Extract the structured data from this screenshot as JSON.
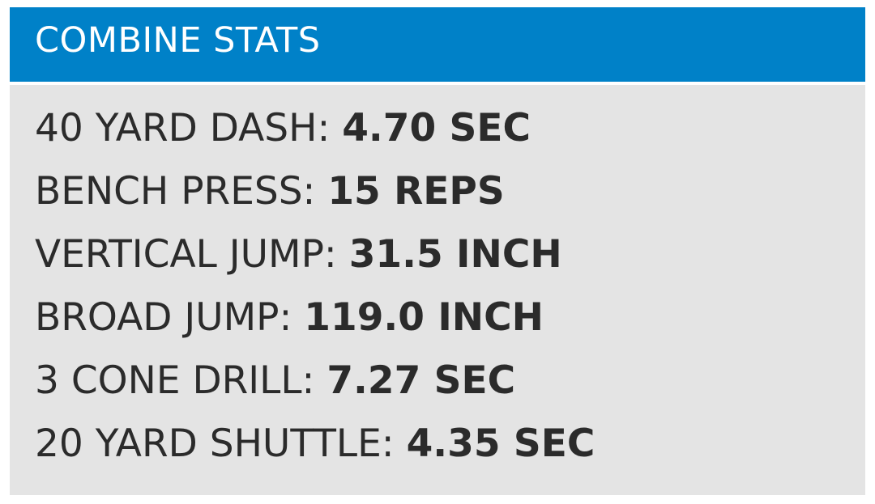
{
  "header": {
    "title": "COMBINE STATS",
    "background_color": "#0081c8"
  },
  "stats": [
    {
      "label": "40 YARD DASH:",
      "value": "4.70 SEC"
    },
    {
      "label": "BENCH PRESS:",
      "value": "15 REPS"
    },
    {
      "label": "VERTICAL JUMP:",
      "value": "31.5 INCH"
    },
    {
      "label": "BROAD JUMP:",
      "value": "119.0 INCH"
    },
    {
      "label": "3 CONE DRILL:",
      "value": "7.27 SEC"
    },
    {
      "label": "20 YARD SHUTTLE:",
      "value": "4.35 SEC"
    }
  ],
  "colors": {
    "panel_background": "#e4e4e4",
    "text": "#2b2b2b"
  }
}
